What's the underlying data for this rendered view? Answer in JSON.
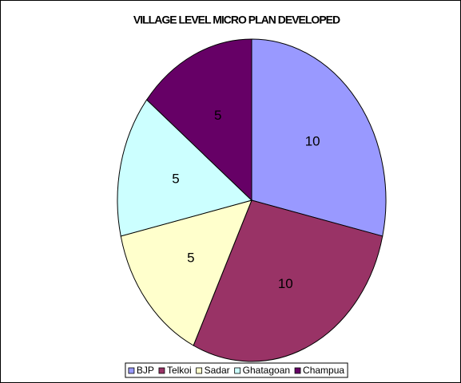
{
  "chart_data": {
    "type": "pie",
    "title": "VILLAGE LEVEL MICRO PLAN DEVELOPED",
    "categories": [
      "BJP",
      "Telkoi",
      "Sadar",
      "Ghatagoan",
      "Champua"
    ],
    "values": [
      10,
      10,
      5,
      5,
      5
    ],
    "colors": [
      "#9999ff",
      "#993366",
      "#ffffcc",
      "#ccffff",
      "#660066"
    ],
    "legend": "bottom"
  }
}
